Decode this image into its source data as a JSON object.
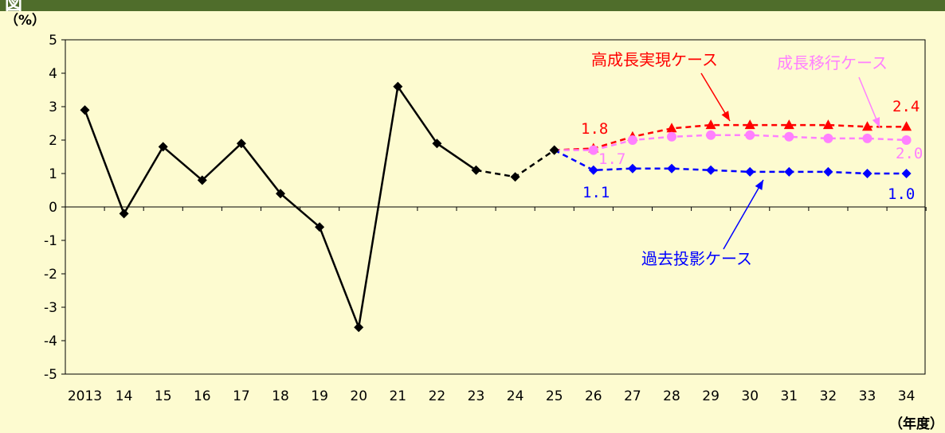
{
  "chart_data": {
    "type": "line",
    "unit_label": "（%）",
    "xlabel": "（年度）",
    "categories": [
      "2013",
      "14",
      "15",
      "16",
      "17",
      "18",
      "19",
      "20",
      "21",
      "22",
      "23",
      "24",
      "25",
      "26",
      "27",
      "28",
      "29",
      "30",
      "31",
      "32",
      "33",
      "34"
    ],
    "ylim": [
      -5,
      5
    ],
    "yticks": [
      5,
      4,
      3,
      2,
      1,
      0,
      -1,
      -2,
      -3,
      -4,
      -5
    ],
    "grid": false,
    "series": [
      {
        "key": "actual",
        "color": "#000000",
        "marker": "diamond",
        "dash": false,
        "x": [
          "2013",
          "14",
          "15",
          "16",
          "17",
          "18",
          "19",
          "20",
          "21",
          "22",
          "23"
        ],
        "values": [
          2.9,
          -0.2,
          1.8,
          0.8,
          1.9,
          0.4,
          -0.6,
          -3.6,
          3.6,
          1.9,
          1.1
        ]
      },
      {
        "key": "estimate",
        "color": "#000000",
        "marker": "diamond",
        "dash": true,
        "x": [
          "23",
          "24",
          "25"
        ],
        "values": [
          1.1,
          0.9,
          1.7
        ]
      },
      {
        "name": "高成長実現ケース",
        "color": "#ff0000",
        "marker": "triangle",
        "dash": true,
        "x": [
          "25",
          "26",
          "27",
          "28",
          "29",
          "30",
          "31",
          "32",
          "33",
          "34"
        ],
        "values": [
          1.7,
          1.75,
          2.1,
          2.35,
          2.45,
          2.45,
          2.45,
          2.45,
          2.4,
          2.4
        ]
      },
      {
        "name": "成長移行ケース",
        "color": "#ff80ff",
        "marker": "circle",
        "dash": true,
        "x": [
          "25",
          "26",
          "27",
          "28",
          "29",
          "30",
          "31",
          "32",
          "33",
          "34"
        ],
        "values": [
          1.7,
          1.7,
          2.0,
          2.1,
          2.15,
          2.15,
          2.1,
          2.05,
          2.05,
          2.0
        ]
      },
      {
        "name": "過去投影ケース",
        "color": "#0000ff",
        "marker": "diamond",
        "dash": true,
        "x": [
          "25",
          "26",
          "27",
          "28",
          "29",
          "30",
          "31",
          "32",
          "33",
          "34"
        ],
        "values": [
          1.7,
          1.1,
          1.15,
          1.15,
          1.1,
          1.05,
          1.05,
          1.05,
          1.0,
          1.0
        ]
      }
    ],
    "annotations": [
      {
        "text": "高成長実現ケース",
        "color": "#ff0000"
      },
      {
        "text": "成長移行ケース",
        "color": "#ff80ff"
      },
      {
        "text": "過去投影ケース",
        "color": "#0000ff"
      }
    ],
    "data_labels": [
      {
        "text": "1.8",
        "color": "#ff0000",
        "x": "26",
        "y": 1.75
      },
      {
        "text": "1.7",
        "color": "#ff80ff",
        "x": "26",
        "y": 1.7
      },
      {
        "text": "1.1",
        "color": "#0000ff",
        "x": "26",
        "y": 1.1
      },
      {
        "text": "2.4",
        "color": "#ff0000",
        "x": "34",
        "y": 2.4
      },
      {
        "text": "2.0",
        "color": "#ff80ff",
        "x": "34",
        "y": 2.0
      },
      {
        "text": "1.0",
        "color": "#0000ff",
        "x": "34",
        "y": 1.0
      }
    ]
  }
}
